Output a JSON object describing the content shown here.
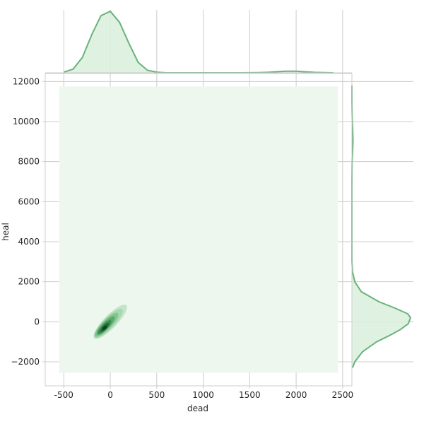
{
  "chart_data": {
    "type": "joint-kde",
    "xlabel": "dead",
    "ylabel": "heal",
    "xlim": [
      -700,
      2600
    ],
    "ylim": [
      -3200,
      12400
    ],
    "xticks": [
      -500,
      0,
      500,
      1000,
      1500,
      2000,
      2500
    ],
    "xtick_labels": [
      "-500",
      "0",
      "500",
      "1000",
      "1500",
      "2000",
      "2500"
    ],
    "yticks": [
      -2000,
      0,
      2000,
      4000,
      6000,
      8000,
      10000,
      12000
    ],
    "ytick_labels": [
      "−2000",
      "0",
      "2000",
      "4000",
      "6000",
      "8000",
      "10000",
      "12000"
    ],
    "grid": true,
    "colors": {
      "line": "#68b27a",
      "fill": "#d9eedc",
      "kde_background": "#edf7ee",
      "kde_dark": "#1b4a2a"
    },
    "kde_region": {
      "x": [
        -550,
        2450
      ],
      "y": [
        -2550,
        11750
      ]
    },
    "marginal_x": {
      "x": [
        -500,
        -400,
        -300,
        -200,
        -100,
        0,
        100,
        200,
        300,
        400,
        500,
        600,
        800,
        1000,
        1200,
        1400,
        1600,
        1700,
        1800,
        1900,
        2000,
        2100,
        2200,
        2300,
        2400
      ],
      "density": [
        0.01,
        0.06,
        0.25,
        0.62,
        0.93,
        1.0,
        0.82,
        0.48,
        0.17,
        0.04,
        0.01,
        0.0,
        0.0,
        0.0,
        0.0,
        0.0,
        0.003,
        0.008,
        0.018,
        0.026,
        0.025,
        0.016,
        0.007,
        0.002,
        0.0
      ]
    },
    "marginal_y": {
      "y": [
        -2300,
        -2000,
        -1500,
        -1000,
        -700,
        -400,
        -100,
        200,
        400,
        700,
        1000,
        1500,
        2000,
        2500,
        3000,
        4000,
        5000,
        6000,
        7000,
        8000,
        8500,
        9000,
        9500,
        10000,
        10500,
        11000,
        11800
      ],
      "density": [
        0.01,
        0.05,
        0.18,
        0.42,
        0.63,
        0.82,
        0.96,
        1.0,
        0.95,
        0.72,
        0.46,
        0.16,
        0.05,
        0.01,
        0.0,
        0.0,
        0.0,
        0.0,
        0.0,
        0.003,
        0.012,
        0.018,
        0.014,
        0.006,
        0.002,
        0.0,
        0.0
      ]
    },
    "kde_levels": [
      {
        "cx": 0,
        "cy": 0,
        "len": 3300,
        "width": 230,
        "color": "#c4e4c9"
      },
      {
        "cx": -20,
        "cy": -80,
        "len": 2800,
        "width": 190,
        "color": "#a6d7ae"
      },
      {
        "cx": -40,
        "cy": -150,
        "len": 2300,
        "width": 150,
        "color": "#83c390"
      },
      {
        "cx": -50,
        "cy": -200,
        "len": 1800,
        "width": 110,
        "color": "#5aa96c"
      },
      {
        "cx": -60,
        "cy": -260,
        "len": 1300,
        "width": 80,
        "color": "#378a4d"
      },
      {
        "cx": -60,
        "cy": -280,
        "len": 800,
        "width": 50,
        "color": "#1f6634"
      },
      {
        "cx": -60,
        "cy": -300,
        "len": 380,
        "width": 25,
        "color": "#123d1f"
      }
    ],
    "kde_angle_deg": 79
  }
}
